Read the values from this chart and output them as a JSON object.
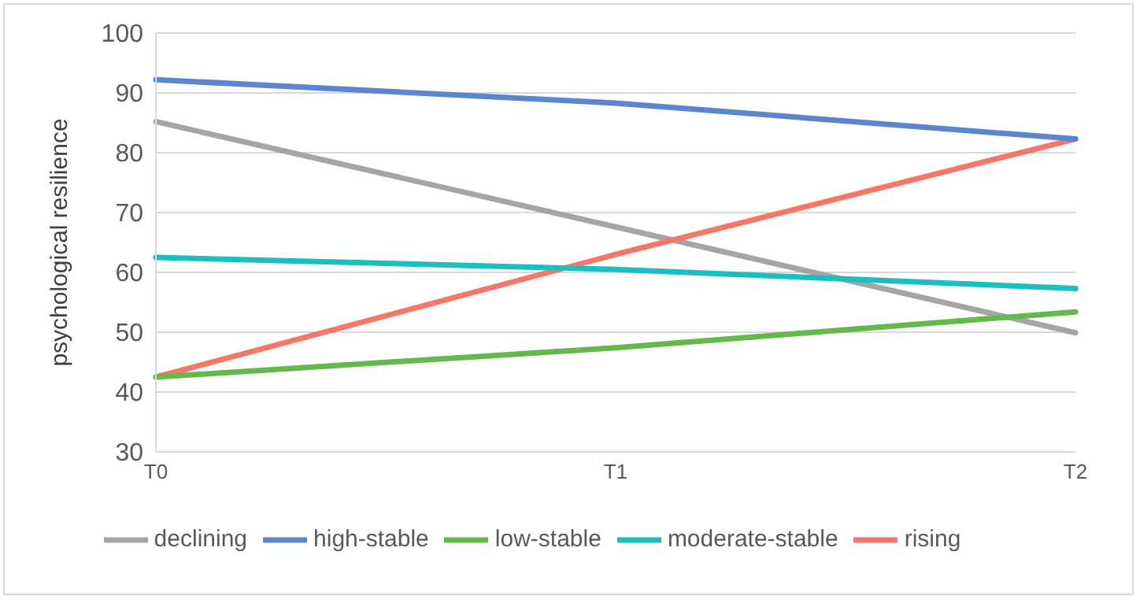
{
  "chart_data": {
    "type": "line",
    "ylabel": "psychological resilience",
    "categories": [
      "T0",
      "T1",
      "T2"
    ],
    "series": [
      {
        "name": "declining",
        "color": "#a5a5a5",
        "values": [
          85.2,
          67.6,
          49.9
        ]
      },
      {
        "name": "rising",
        "color": "#f4776a",
        "values": [
          42.5,
          63,
          82.3
        ]
      },
      {
        "name": "moderate-stable",
        "color": "#1cbfc0",
        "values": [
          62.5,
          60.5,
          57.3
        ]
      },
      {
        "name": "high-stable",
        "color": "#5b85d0",
        "values": [
          92.2,
          88.3,
          82.3
        ]
      },
      {
        "name": "low-stable",
        "color": "#65b84b",
        "values": [
          42.5,
          47.4,
          53.4
        ]
      }
    ],
    "ylim": [
      30,
      100
    ],
    "yticks": [
      30,
      40,
      50,
      60,
      70,
      80,
      90,
      100
    ],
    "grid": "y",
    "legend": "bottom",
    "marker": "none",
    "line_style": "solid"
  }
}
